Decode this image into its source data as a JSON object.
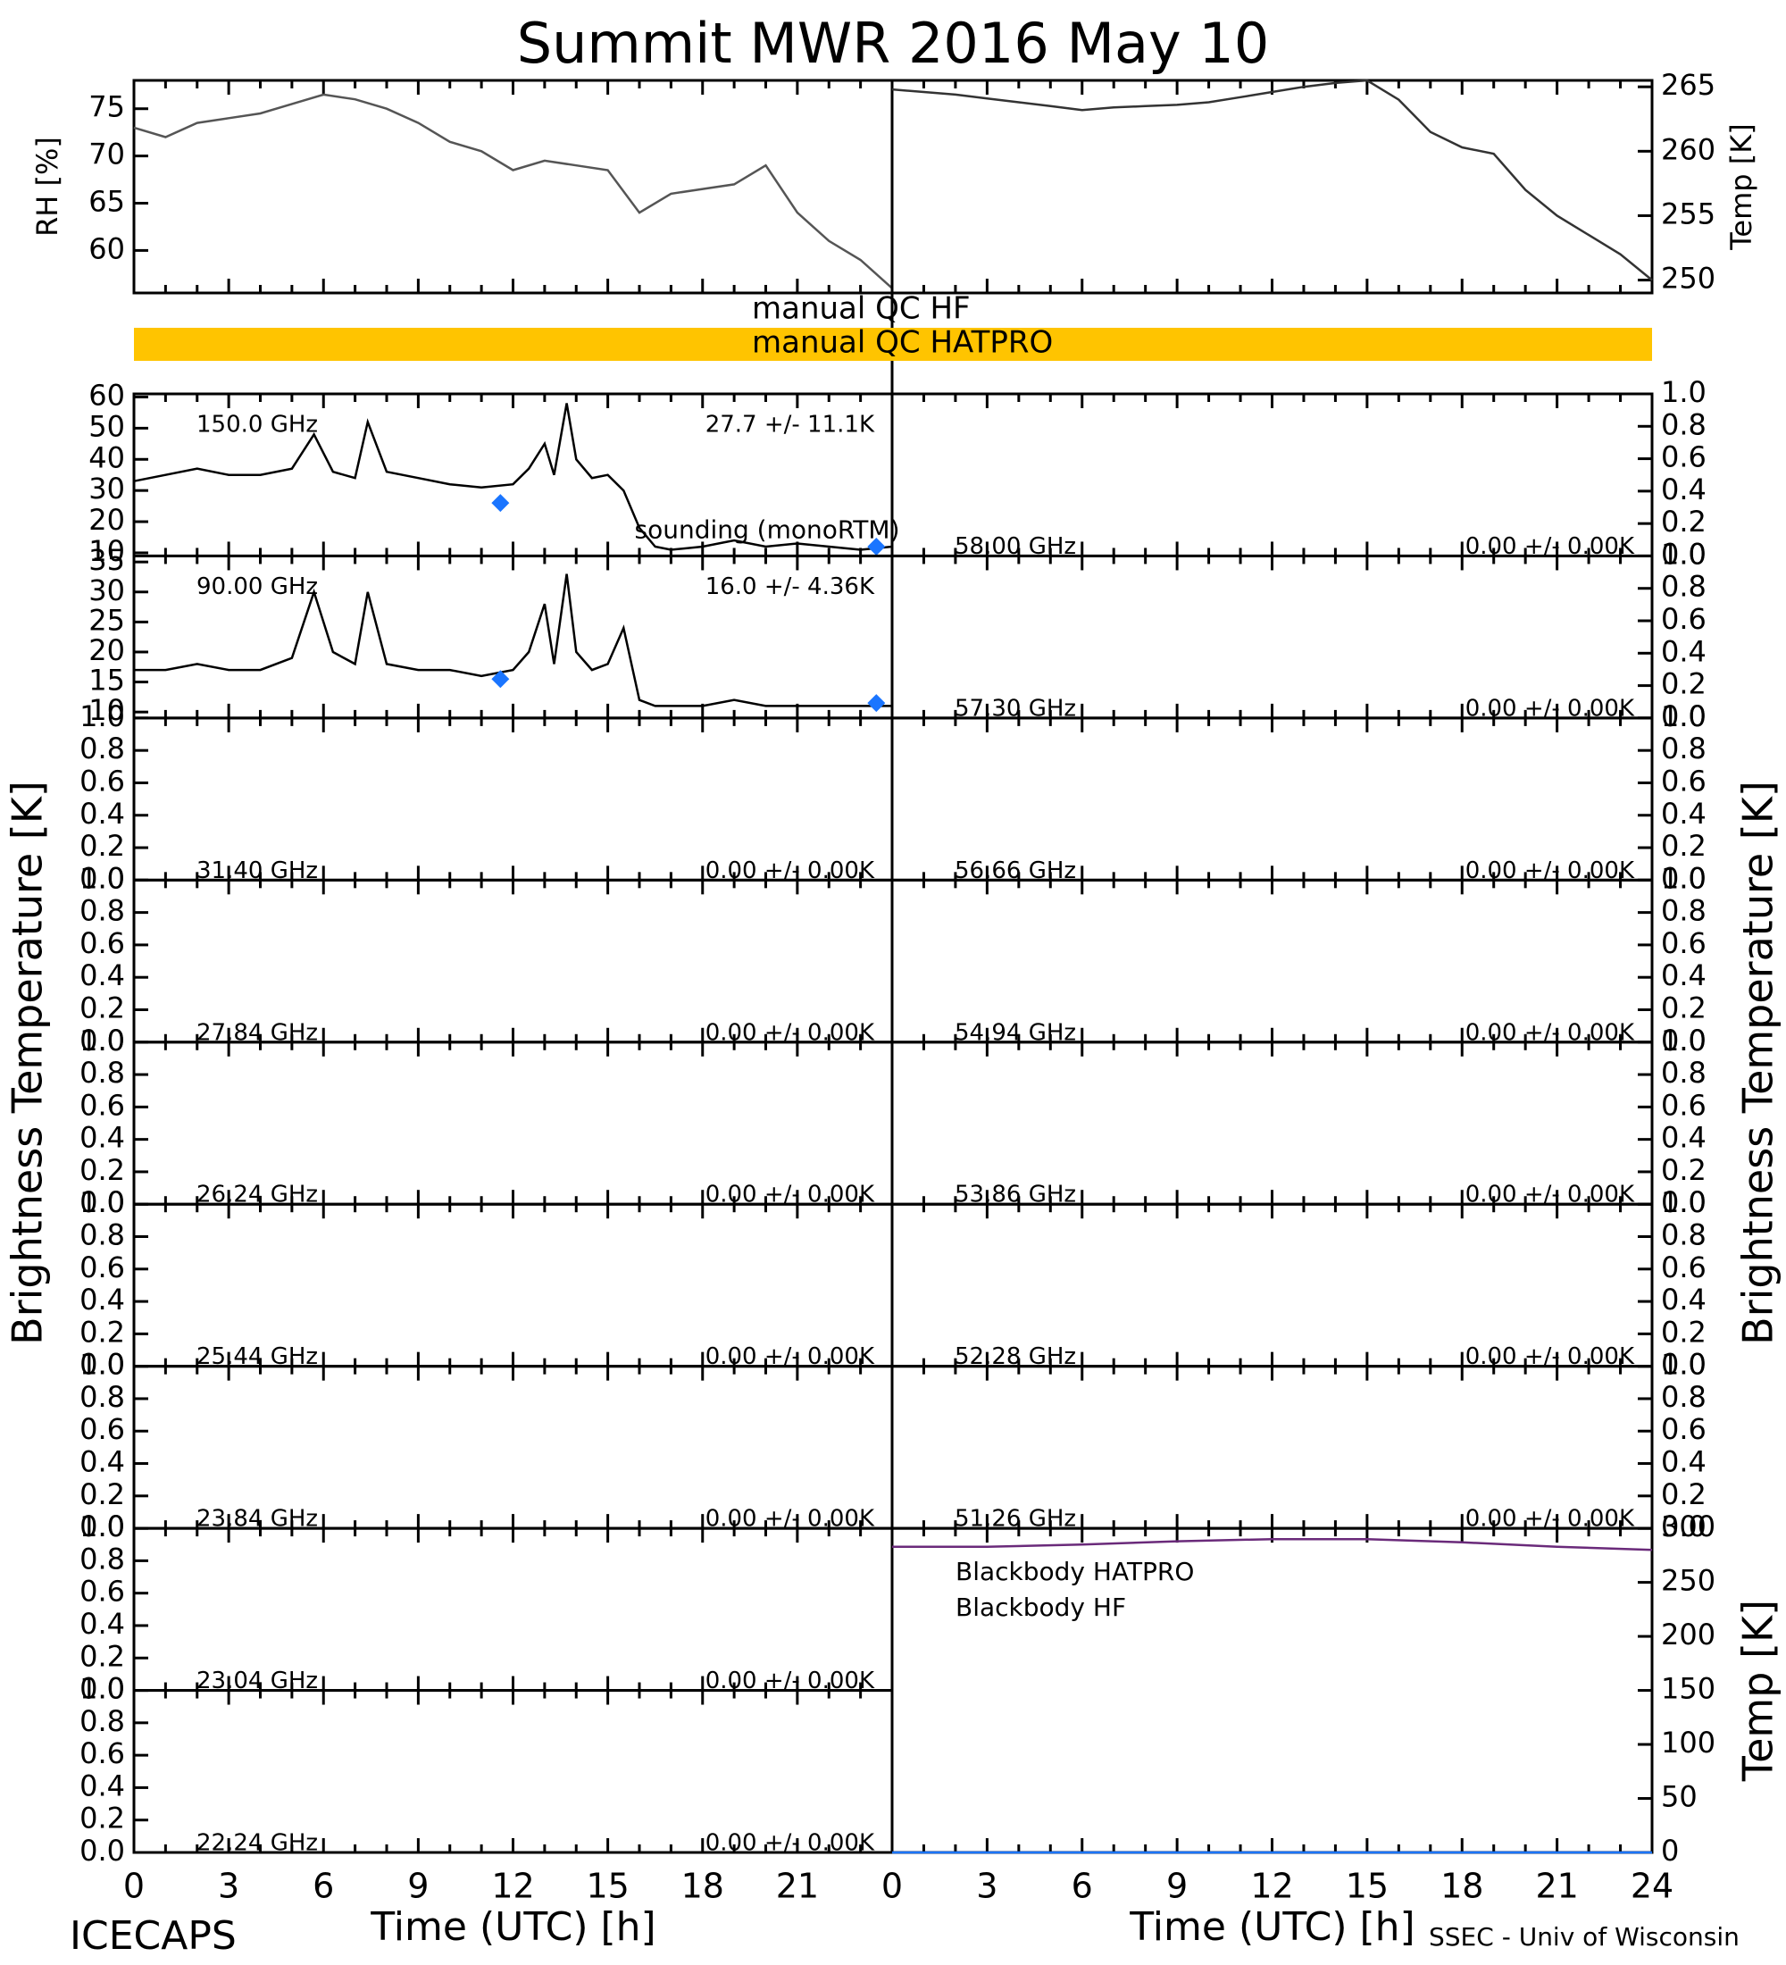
{
  "title": "Summit MWR 2016 May 10",
  "footer_left": "ICECAPS",
  "footer_right": "SSEC - Univ of Wisconsin",
  "xlabel": "Time (UTC) [h]",
  "ylabel": "Brightness Temperature [K]",
  "xlim": [
    0,
    24
  ],
  "xticks": [
    0,
    3,
    6,
    9,
    12,
    15,
    18,
    21,
    24
  ],
  "xminorticks": [
    1,
    2,
    4,
    5,
    7,
    8,
    10,
    11,
    13,
    14,
    16,
    17,
    19,
    20,
    22,
    23
  ],
  "qc": [
    {
      "label": "manual QC HF"
    },
    {
      "label": "manual QC HATPRO",
      "color": "#ffc400"
    }
  ],
  "chart_data": [
    {
      "type": "line",
      "ylabel": "RH [%]",
      "ylim": [
        55.5,
        78
      ],
      "yticks": [
        60,
        65,
        70,
        75
      ],
      "series": [
        {
          "color": "#555555",
          "x": [
            0,
            1,
            2,
            3,
            4,
            5,
            6,
            7,
            8,
            9,
            10,
            11,
            12,
            13,
            14,
            15,
            16,
            17,
            18,
            19,
            20,
            21,
            22,
            23,
            24
          ],
          "values": [
            73,
            72,
            73.5,
            74,
            74.5,
            75.5,
            76.5,
            76,
            75,
            73.5,
            71.5,
            70.5,
            68.5,
            69.5,
            69,
            68.5,
            64,
            66,
            66.5,
            67,
            69,
            64,
            61,
            59,
            56
          ]
        }
      ]
    },
    {
      "type": "line",
      "ylabel": "Temp [K]",
      "ylim": [
        249,
        265.5
      ],
      "yticks": [
        250,
        255,
        260,
        265
      ],
      "series": [
        {
          "color": "#333333",
          "x": [
            0,
            1,
            2,
            3,
            4,
            5,
            6,
            7,
            8,
            9,
            10,
            11,
            12,
            13,
            14,
            15,
            16,
            17,
            18,
            19,
            20,
            21,
            22,
            23,
            24
          ],
          "values": [
            264.8,
            264.6,
            264.4,
            264.1,
            263.8,
            263.5,
            263.2,
            263.4,
            263.5,
            263.6,
            263.8,
            264.2,
            264.6,
            265,
            265.3,
            265.5,
            264,
            261.5,
            260.3,
            259.8,
            257,
            255,
            253.5,
            252,
            250
          ]
        }
      ]
    },
    {
      "type": "line",
      "channel": "150.0 GHz",
      "stats": "27.7 +/-  11.1K",
      "ylim": [
        9,
        61
      ],
      "yticks": [
        10,
        20,
        30,
        40,
        50,
        60
      ],
      "series": [
        {
          "color": "#000000",
          "x": [
            0,
            1,
            2,
            3,
            4,
            5,
            5.7,
            6.3,
            7,
            7.4,
            8,
            9,
            10,
            11,
            12,
            12.5,
            13,
            13.3,
            13.7,
            14,
            14.5,
            15,
            15.5,
            16,
            16.5,
            17,
            18,
            19,
            20,
            21,
            22,
            23,
            24
          ],
          "values": [
            33,
            35,
            37,
            35,
            35,
            37,
            48,
            36,
            34,
            52,
            36,
            34,
            32,
            31,
            32,
            37,
            45,
            35,
            58,
            40,
            34,
            35,
            30,
            18,
            12,
            11,
            12,
            14,
            12,
            13,
            12,
            11,
            12
          ]
        },
        {
          "type": "scatter",
          "name": "sounding (monoRTM)",
          "color": "#1a75ff",
          "x": [
            11.6,
            23.5
          ],
          "values": [
            26,
            12
          ]
        }
      ]
    },
    {
      "type": "line",
      "channel": "90.00 GHz",
      "stats": "16.0 +/-   4.36K",
      "ylim": [
        9,
        36
      ],
      "yticks": [
        10,
        15,
        20,
        25,
        30,
        35
      ],
      "series": [
        {
          "color": "#000000",
          "x": [
            0,
            1,
            2,
            3,
            4,
            5,
            5.7,
            6.3,
            7,
            7.4,
            8,
            9,
            10,
            11,
            12,
            12.5,
            13,
            13.3,
            13.7,
            14,
            14.5,
            15,
            15.5,
            16,
            16.5,
            17,
            18,
            19,
            20,
            21,
            22,
            23,
            24
          ],
          "values": [
            17,
            17,
            18,
            17,
            17,
            19,
            30,
            20,
            18,
            30,
            18,
            17,
            17,
            16,
            17,
            20,
            28,
            18,
            33,
            20,
            17,
            18,
            24,
            12,
            11,
            11,
            11,
            12,
            11,
            11,
            11,
            11,
            11
          ]
        },
        {
          "type": "scatter",
          "color": "#1a75ff",
          "x": [
            11.6,
            23.5
          ],
          "values": [
            15.5,
            11.5
          ]
        }
      ]
    },
    {
      "type": "line",
      "channel": "31.40 GHz",
      "stats": "0.00 +/-  0.00K",
      "ylim": [
        0,
        1
      ],
      "yticks": [
        {
          "value": 0,
          "label": "0.0"
        },
        {
          "value": 0.2,
          "label": "0.2"
        },
        {
          "value": 0.4,
          "label": "0.4"
        },
        {
          "value": 0.6,
          "label": "0.6"
        },
        {
          "value": 0.8,
          "label": "0.8"
        },
        {
          "value": 1,
          "label": "1.0"
        }
      ],
      "series": []
    },
    {
      "type": "line",
      "channel": "27.84 GHz",
      "stats": "0.00 +/-  0.00K",
      "ylim": [
        0,
        1
      ],
      "yticks": [
        {
          "value": 0,
          "label": "0.0"
        },
        {
          "value": 0.2,
          "label": "0.2"
        },
        {
          "value": 0.4,
          "label": "0.4"
        },
        {
          "value": 0.6,
          "label": "0.6"
        },
        {
          "value": 0.8,
          "label": "0.8"
        },
        {
          "value": 1,
          "label": "1.0"
        }
      ],
      "series": []
    },
    {
      "type": "line",
      "channel": "26.24 GHz",
      "stats": "0.00 +/-  0.00K",
      "ylim": [
        0,
        1
      ],
      "yticks": [
        {
          "value": 0,
          "label": "0.0"
        },
        {
          "value": 0.2,
          "label": "0.2"
        },
        {
          "value": 0.4,
          "label": "0.4"
        },
        {
          "value": 0.6,
          "label": "0.6"
        },
        {
          "value": 0.8,
          "label": "0.8"
        },
        {
          "value": 1,
          "label": "1.0"
        }
      ],
      "series": []
    },
    {
      "type": "line",
      "channel": "25.44 GHz",
      "stats": "0.00 +/-  0.00K",
      "ylim": [
        0,
        1
      ],
      "yticks": [
        {
          "value": 0,
          "label": "0.0"
        },
        {
          "value": 0.2,
          "label": "0.2"
        },
        {
          "value": 0.4,
          "label": "0.4"
        },
        {
          "value": 0.6,
          "label": "0.6"
        },
        {
          "value": 0.8,
          "label": "0.8"
        },
        {
          "value": 1,
          "label": "1.0"
        }
      ],
      "series": []
    },
    {
      "type": "line",
      "channel": "23.84 GHz",
      "stats": "0.00 +/-  0.00K",
      "ylim": [
        0,
        1
      ],
      "yticks": [
        {
          "value": 0,
          "label": "0.0"
        },
        {
          "value": 0.2,
          "label": "0.2"
        },
        {
          "value": 0.4,
          "label": "0.4"
        },
        {
          "value": 0.6,
          "label": "0.6"
        },
        {
          "value": 0.8,
          "label": "0.8"
        },
        {
          "value": 1,
          "label": "1.0"
        }
      ],
      "series": []
    },
    {
      "type": "line",
      "channel": "23.04 GHz",
      "stats": "0.00 +/-  0.00K",
      "ylim": [
        0,
        1
      ],
      "yticks": [
        {
          "value": 0,
          "label": "0.0"
        },
        {
          "value": 0.2,
          "label": "0.2"
        },
        {
          "value": 0.4,
          "label": "0.4"
        },
        {
          "value": 0.6,
          "label": "0.6"
        },
        {
          "value": 0.8,
          "label": "0.8"
        },
        {
          "value": 1,
          "label": "1.0"
        }
      ],
      "series": []
    },
    {
      "type": "line",
      "channel": "22.24 GHz",
      "stats": "0.00 +/-  0.00K",
      "ylim": [
        0,
        1
      ],
      "yticks": [
        {
          "value": 0,
          "label": "0.0"
        },
        {
          "value": 0.2,
          "label": "0.2"
        },
        {
          "value": 0.4,
          "label": "0.4"
        },
        {
          "value": 0.6,
          "label": "0.6"
        },
        {
          "value": 0.8,
          "label": "0.8"
        },
        {
          "value": 1,
          "label": "1.0"
        }
      ],
      "series": []
    },
    {
      "type": "line",
      "channel": "58.00 GHz",
      "stats": "0.00 +/-  0.00K",
      "ylim": [
        0,
        1
      ],
      "yticks": [
        {
          "value": 0,
          "label": "0.0"
        },
        {
          "value": 0.2,
          "label": "0.2"
        },
        {
          "value": 0.4,
          "label": "0.4"
        },
        {
          "value": 0.6,
          "label": "0.6"
        },
        {
          "value": 0.8,
          "label": "0.8"
        },
        {
          "value": 1,
          "label": "1.0"
        }
      ],
      "series": []
    },
    {
      "type": "line",
      "channel": "57.30 GHz",
      "stats": "0.00 +/-  0.00K",
      "ylim": [
        0,
        1
      ],
      "yticks": [
        {
          "value": 0,
          "label": "0.0"
        },
        {
          "value": 0.2,
          "label": "0.2"
        },
        {
          "value": 0.4,
          "label": "0.4"
        },
        {
          "value": 0.6,
          "label": "0.6"
        },
        {
          "value": 0.8,
          "label": "0.8"
        },
        {
          "value": 1,
          "label": "1.0"
        }
      ],
      "series": []
    },
    {
      "type": "line",
      "channel": "56.66 GHz",
      "stats": "0.00 +/-  0.00K",
      "ylim": [
        0,
        1
      ],
      "yticks": [
        {
          "value": 0,
          "label": "0.0"
        },
        {
          "value": 0.2,
          "label": "0.2"
        },
        {
          "value": 0.4,
          "label": "0.4"
        },
        {
          "value": 0.6,
          "label": "0.6"
        },
        {
          "value": 0.8,
          "label": "0.8"
        },
        {
          "value": 1,
          "label": "1.0"
        }
      ],
      "series": []
    },
    {
      "type": "line",
      "channel": "54.94 GHz",
      "stats": "0.00 +/-  0.00K",
      "ylim": [
        0,
        1
      ],
      "yticks": [
        {
          "value": 0,
          "label": "0.0"
        },
        {
          "value": 0.2,
          "label": "0.2"
        },
        {
          "value": 0.4,
          "label": "0.4"
        },
        {
          "value": 0.6,
          "label": "0.6"
        },
        {
          "value": 0.8,
          "label": "0.8"
        },
        {
          "value": 1,
          "label": "1.0"
        }
      ],
      "series": []
    },
    {
      "type": "line",
      "channel": "53.86 GHz",
      "stats": "0.00 +/-  0.00K",
      "ylim": [
        0,
        1
      ],
      "yticks": [
        {
          "value": 0,
          "label": "0.0"
        },
        {
          "value": 0.2,
          "label": "0.2"
        },
        {
          "value": 0.4,
          "label": "0.4"
        },
        {
          "value": 0.6,
          "label": "0.6"
        },
        {
          "value": 0.8,
          "label": "0.8"
        },
        {
          "value": 1,
          "label": "1.0"
        }
      ],
      "series": []
    },
    {
      "type": "line",
      "channel": "52.28 GHz",
      "stats": "0.00 +/-  0.00K",
      "ylim": [
        0,
        1
      ],
      "yticks": [
        {
          "value": 0,
          "label": "0.0"
        },
        {
          "value": 0.2,
          "label": "0.2"
        },
        {
          "value": 0.4,
          "label": "0.4"
        },
        {
          "value": 0.6,
          "label": "0.6"
        },
        {
          "value": 0.8,
          "label": "0.8"
        },
        {
          "value": 1,
          "label": "1.0"
        }
      ],
      "series": []
    },
    {
      "type": "line",
      "channel": "51.26 GHz",
      "stats": "0.00 +/-  0.00K",
      "ylim": [
        0,
        1
      ],
      "yticks": [
        {
          "value": 0,
          "label": "0.0"
        },
        {
          "value": 0.2,
          "label": "0.2"
        },
        {
          "value": 0.4,
          "label": "0.4"
        },
        {
          "value": 0.6,
          "label": "0.6"
        },
        {
          "value": 0.8,
          "label": "0.8"
        },
        {
          "value": 1,
          "label": "1.0"
        }
      ],
      "series": []
    },
    {
      "type": "line",
      "ylabel": "Temp [K]",
      "ylim": [
        0,
        300
      ],
      "yticks": [
        0,
        50,
        100,
        150,
        200,
        250,
        300
      ],
      "series": [
        {
          "name": "Blackbody HATPRO",
          "color": "#1a75ff",
          "x": [
            0,
            6,
            12,
            18,
            24
          ],
          "values": [
            0,
            0,
            0,
            0,
            0
          ]
        },
        {
          "name": "Blackbody HF",
          "color": "#6a2a7a",
          "x": [
            0,
            3,
            6,
            9,
            12,
            15,
            18,
            21,
            24
          ],
          "values": [
            283,
            283,
            285,
            288,
            290,
            290,
            287,
            283,
            280
          ]
        }
      ]
    }
  ]
}
